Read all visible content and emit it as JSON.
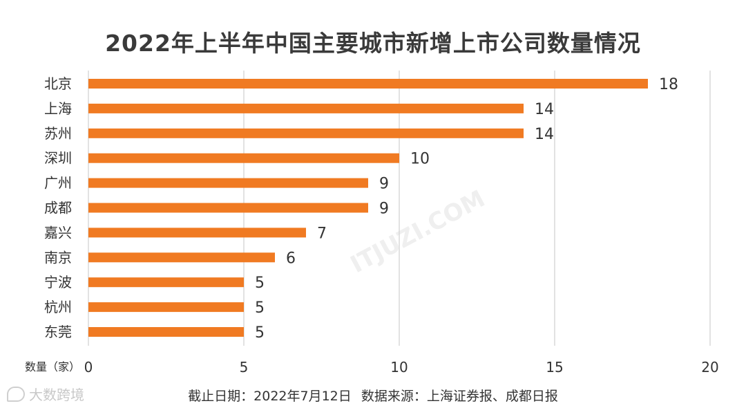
{
  "chart_data": {
    "type": "bar",
    "orientation": "horizontal",
    "title": "2022年上半年中国主要城市新增上市公司数量情况",
    "categories": [
      "北京",
      "上海",
      "苏州",
      "深圳",
      "广州",
      "成都",
      "嘉兴",
      "南京",
      "宁波",
      "杭州",
      "东莞"
    ],
    "values": [
      18,
      14,
      14,
      10,
      9,
      9,
      7,
      6,
      5,
      5,
      5
    ],
    "xlabel": "数量（家）",
    "xlim": [
      0,
      20
    ],
    "xticks": [
      "0",
      "5",
      "10",
      "15",
      "20"
    ],
    "grid": "vertical",
    "bar_color": "#f07a22"
  },
  "footer": {
    "date_note": "截止日期：2022年7月12日",
    "source_note": "数据来源：上海证券报、成都日报"
  },
  "watermark": {
    "text": "ITJUZI.COM"
  },
  "brand": {
    "name": "大数跨境",
    "icon": "chat-bubble-icon"
  },
  "colors": {
    "bar": "#f07a22",
    "grid": "#d9d9d9",
    "text": "#333333",
    "title": "#3a3a3a"
  }
}
